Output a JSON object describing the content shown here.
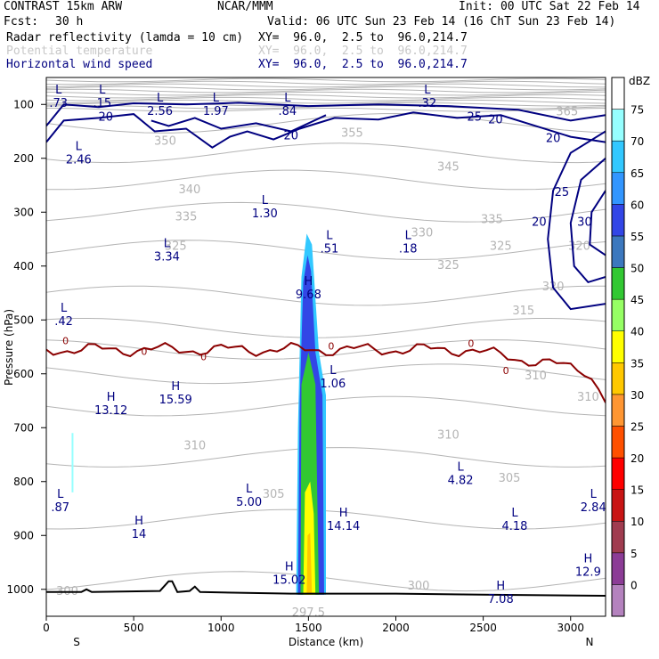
{
  "header": {
    "model": "CONTRAST 15km ARW",
    "center": "NCAR/MMM",
    "init": "Init: 00 UTC Sat 22 Feb 14",
    "fcst_label": "Fcst:",
    "fcst_value": "30 h",
    "valid": "Valid: 06 UTC Sun 23 Feb 14 (16 ChT Sun 23 Feb 14)"
  },
  "fields": [
    {
      "name": "Radar reflectivity (lamda = 10 cm)",
      "xy": "XY=  96.0,  2.5 to  96.0,214.7",
      "color": "#000000"
    },
    {
      "name": "Potential temperature",
      "xy": "XY=  96.0,  2.5 to  96.0,214.7",
      "color": "#c8c8c8"
    },
    {
      "name": "Horizontal wind speed",
      "xy": "XY=  96.0,  2.5 to  96.0,214.7",
      "color": "#000080"
    }
  ],
  "chart_data": {
    "type": "contour",
    "xlabel": "Distance (km)",
    "ylabel": "Pressure (hPa)",
    "xlim": [
      0,
      3200
    ],
    "ylim": [
      1050,
      50
    ],
    "x_ticks": [
      0,
      500,
      1000,
      1500,
      2000,
      2500,
      3000
    ],
    "y_ticks": [
      100,
      200,
      300,
      400,
      500,
      600,
      700,
      800,
      900,
      1000
    ],
    "x_end_labels": {
      "left": "S",
      "right": "N"
    },
    "colorbar": {
      "unit": "dBZ",
      "levels": [
        0,
        5,
        10,
        15,
        20,
        25,
        30,
        35,
        40,
        45,
        50,
        55,
        60,
        65,
        70,
        75
      ],
      "colors": [
        "#ffffff",
        "#96ffff",
        "#32c8ff",
        "#3296ff",
        "#3246e6",
        "#3c78be",
        "#32c832",
        "#96ff64",
        "#ffff00",
        "#ffc800",
        "#ff9632",
        "#ff5000",
        "#ff0000",
        "#c81414",
        "#a03c50",
        "#8c3c96",
        "#b482be"
      ]
    },
    "extrema": [
      {
        "t": "L",
        "v": ".73",
        "x": 70,
        "p": 80
      },
      {
        "t": "L",
        "v": ".15",
        "x": 320,
        "p": 80
      },
      {
        "t": "L",
        "v": "2.56",
        "x": 650,
        "p": 95
      },
      {
        "t": "L",
        "v": "1.97",
        "x": 970,
        "p": 95
      },
      {
        "t": "L",
        "v": ".84",
        "x": 1380,
        "p": 95
      },
      {
        "t": "L",
        "v": ".32",
        "x": 2180,
        "p": 80
      },
      {
        "t": "L",
        "v": "2.46",
        "x": 185,
        "p": 185
      },
      {
        "t": "L",
        "v": "1.30",
        "x": 1250,
        "p": 285
      },
      {
        "t": "L",
        "v": "3.34",
        "x": 690,
        "p": 365
      },
      {
        "t": "L",
        "v": ".51",
        "x": 1620,
        "p": 350
      },
      {
        "t": "L",
        "v": ".18",
        "x": 2070,
        "p": 350
      },
      {
        "t": "H",
        "v": "9.68",
        "x": 1500,
        "p": 435
      },
      {
        "t": "L",
        "v": ".42",
        "x": 100,
        "p": 485
      },
      {
        "t": "L",
        "v": "1.06",
        "x": 1640,
        "p": 600
      },
      {
        "t": "H",
        "v": "13.12",
        "x": 370,
        "p": 650
      },
      {
        "t": "H",
        "v": "15.59",
        "x": 740,
        "p": 630
      },
      {
        "t": "L",
        "v": "4.82",
        "x": 2370,
        "p": 780
      },
      {
        "t": "L",
        "v": "5.00",
        "x": 1160,
        "p": 820
      },
      {
        "t": "L",
        "v": ".87",
        "x": 80,
        "p": 830
      },
      {
        "t": "H",
        "v": "14.14",
        "x": 1700,
        "p": 865
      },
      {
        "t": "L",
        "v": "4.18",
        "x": 2680,
        "p": 865
      },
      {
        "t": "L",
        "v": "2.84",
        "x": 3130,
        "p": 830
      },
      {
        "t": "H",
        "v": "14",
        "x": 530,
        "p": 880
      },
      {
        "t": "H",
        "v": "12.9",
        "x": 3100,
        "p": 950
      },
      {
        "t": "H",
        "v": "15.02",
        "x": 1390,
        "p": 965
      },
      {
        "t": "H",
        "v": "7.08",
        "x": 2600,
        "p": 1000
      }
    ],
    "theta_labels": [
      "365",
      "355",
      "350",
      "345",
      "340",
      "335",
      "330",
      "325",
      "320",
      "315",
      "310",
      "305",
      "300",
      "297.5"
    ],
    "wind_labels": [
      "20",
      "25",
      "30"
    ],
    "zero_isotherm_label": "0"
  }
}
